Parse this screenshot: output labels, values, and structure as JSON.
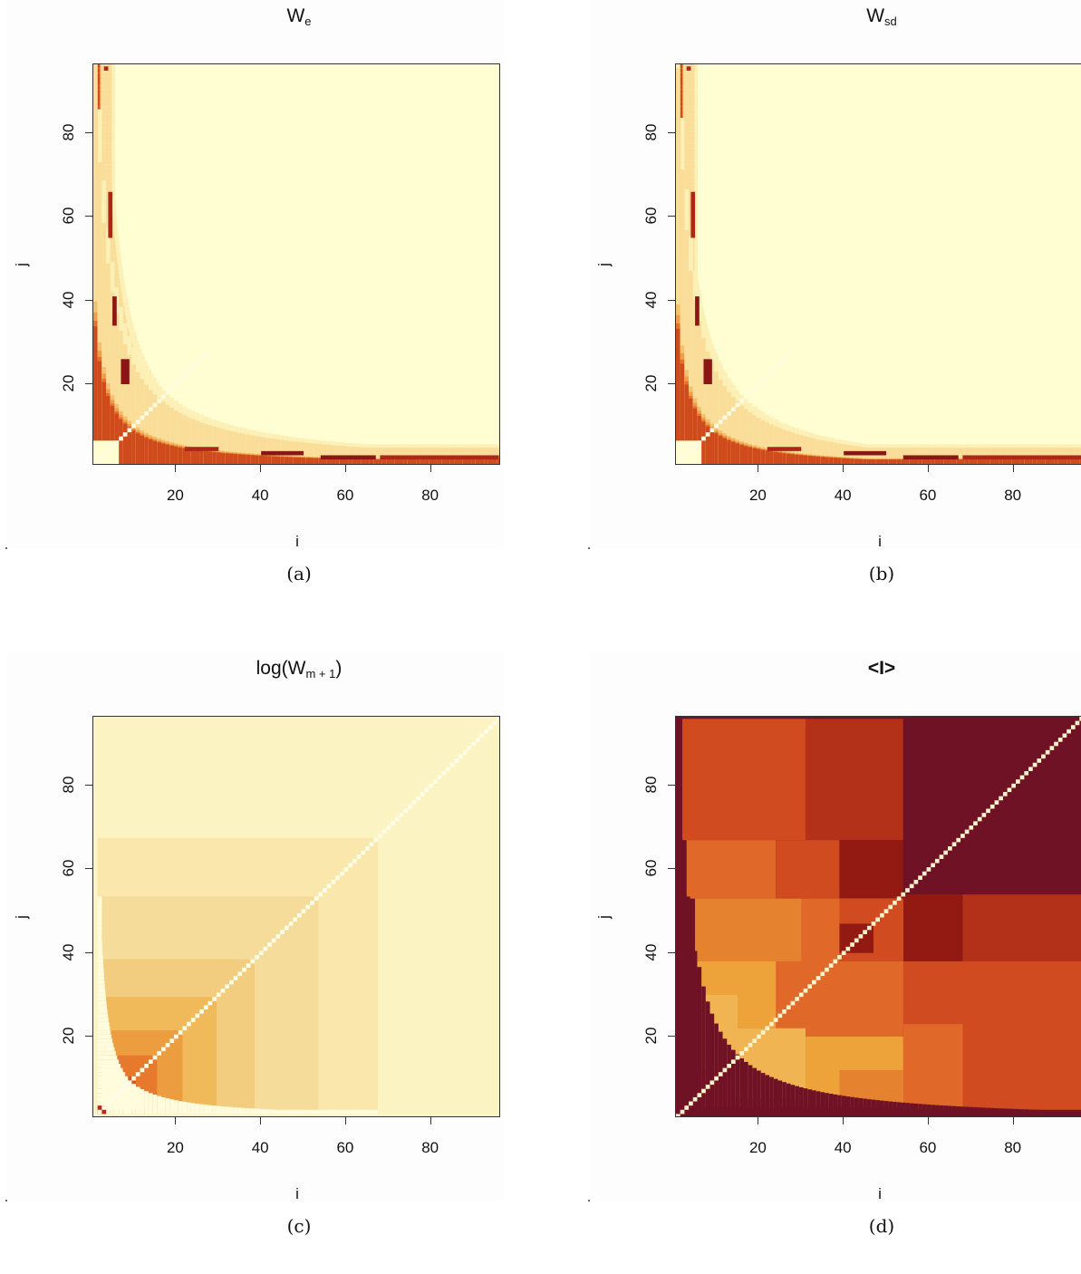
{
  "chart_data": [
    {
      "type": "heatmap",
      "title_main": "W",
      "title_sub": "e",
      "xlabel": "i",
      "ylabel": "j",
      "xticks": [
        20,
        40,
        60,
        80
      ],
      "yticks": [
        20,
        40,
        60,
        80
      ],
      "xlim": [
        1,
        96
      ],
      "ylim": [
        1,
        96
      ],
      "caption": "(a)",
      "palette": [
        "#fffdd2",
        "#fdf0b6",
        "#f9dd99",
        "#f3c06e",
        "#ee9e48",
        "#e5712a",
        "#cf4b1d",
        "#ad2718",
        "#8c1616"
      ]
    },
    {
      "type": "heatmap",
      "title_main": "W",
      "title_sub": "sd",
      "xlabel": "i",
      "ylabel": "j",
      "xticks": [
        20,
        40,
        60,
        80
      ],
      "yticks": [
        20,
        40,
        60,
        80
      ],
      "xlim": [
        1,
        96
      ],
      "ylim": [
        1,
        96
      ],
      "caption": "(b)"
    },
    {
      "type": "heatmap",
      "title_main": "log(W",
      "title_sub": "m + 1",
      "title_tail": ")",
      "xlabel": "i",
      "ylabel": "j",
      "xticks": [
        20,
        40,
        60,
        80
      ],
      "yticks": [
        20,
        40,
        60,
        80
      ],
      "xlim": [
        1,
        96
      ],
      "ylim": [
        1,
        96
      ],
      "caption": "(c)"
    },
    {
      "type": "heatmap",
      "title_main": "<I>",
      "title_sub": "",
      "xlabel": "i",
      "ylabel": "j",
      "xticks": [
        20,
        40,
        60,
        80
      ],
      "yticks": [
        20,
        40,
        60,
        80
      ],
      "xlim": [
        1,
        96
      ],
      "ylim": [
        1,
        96
      ],
      "caption": "(d)"
    }
  ]
}
